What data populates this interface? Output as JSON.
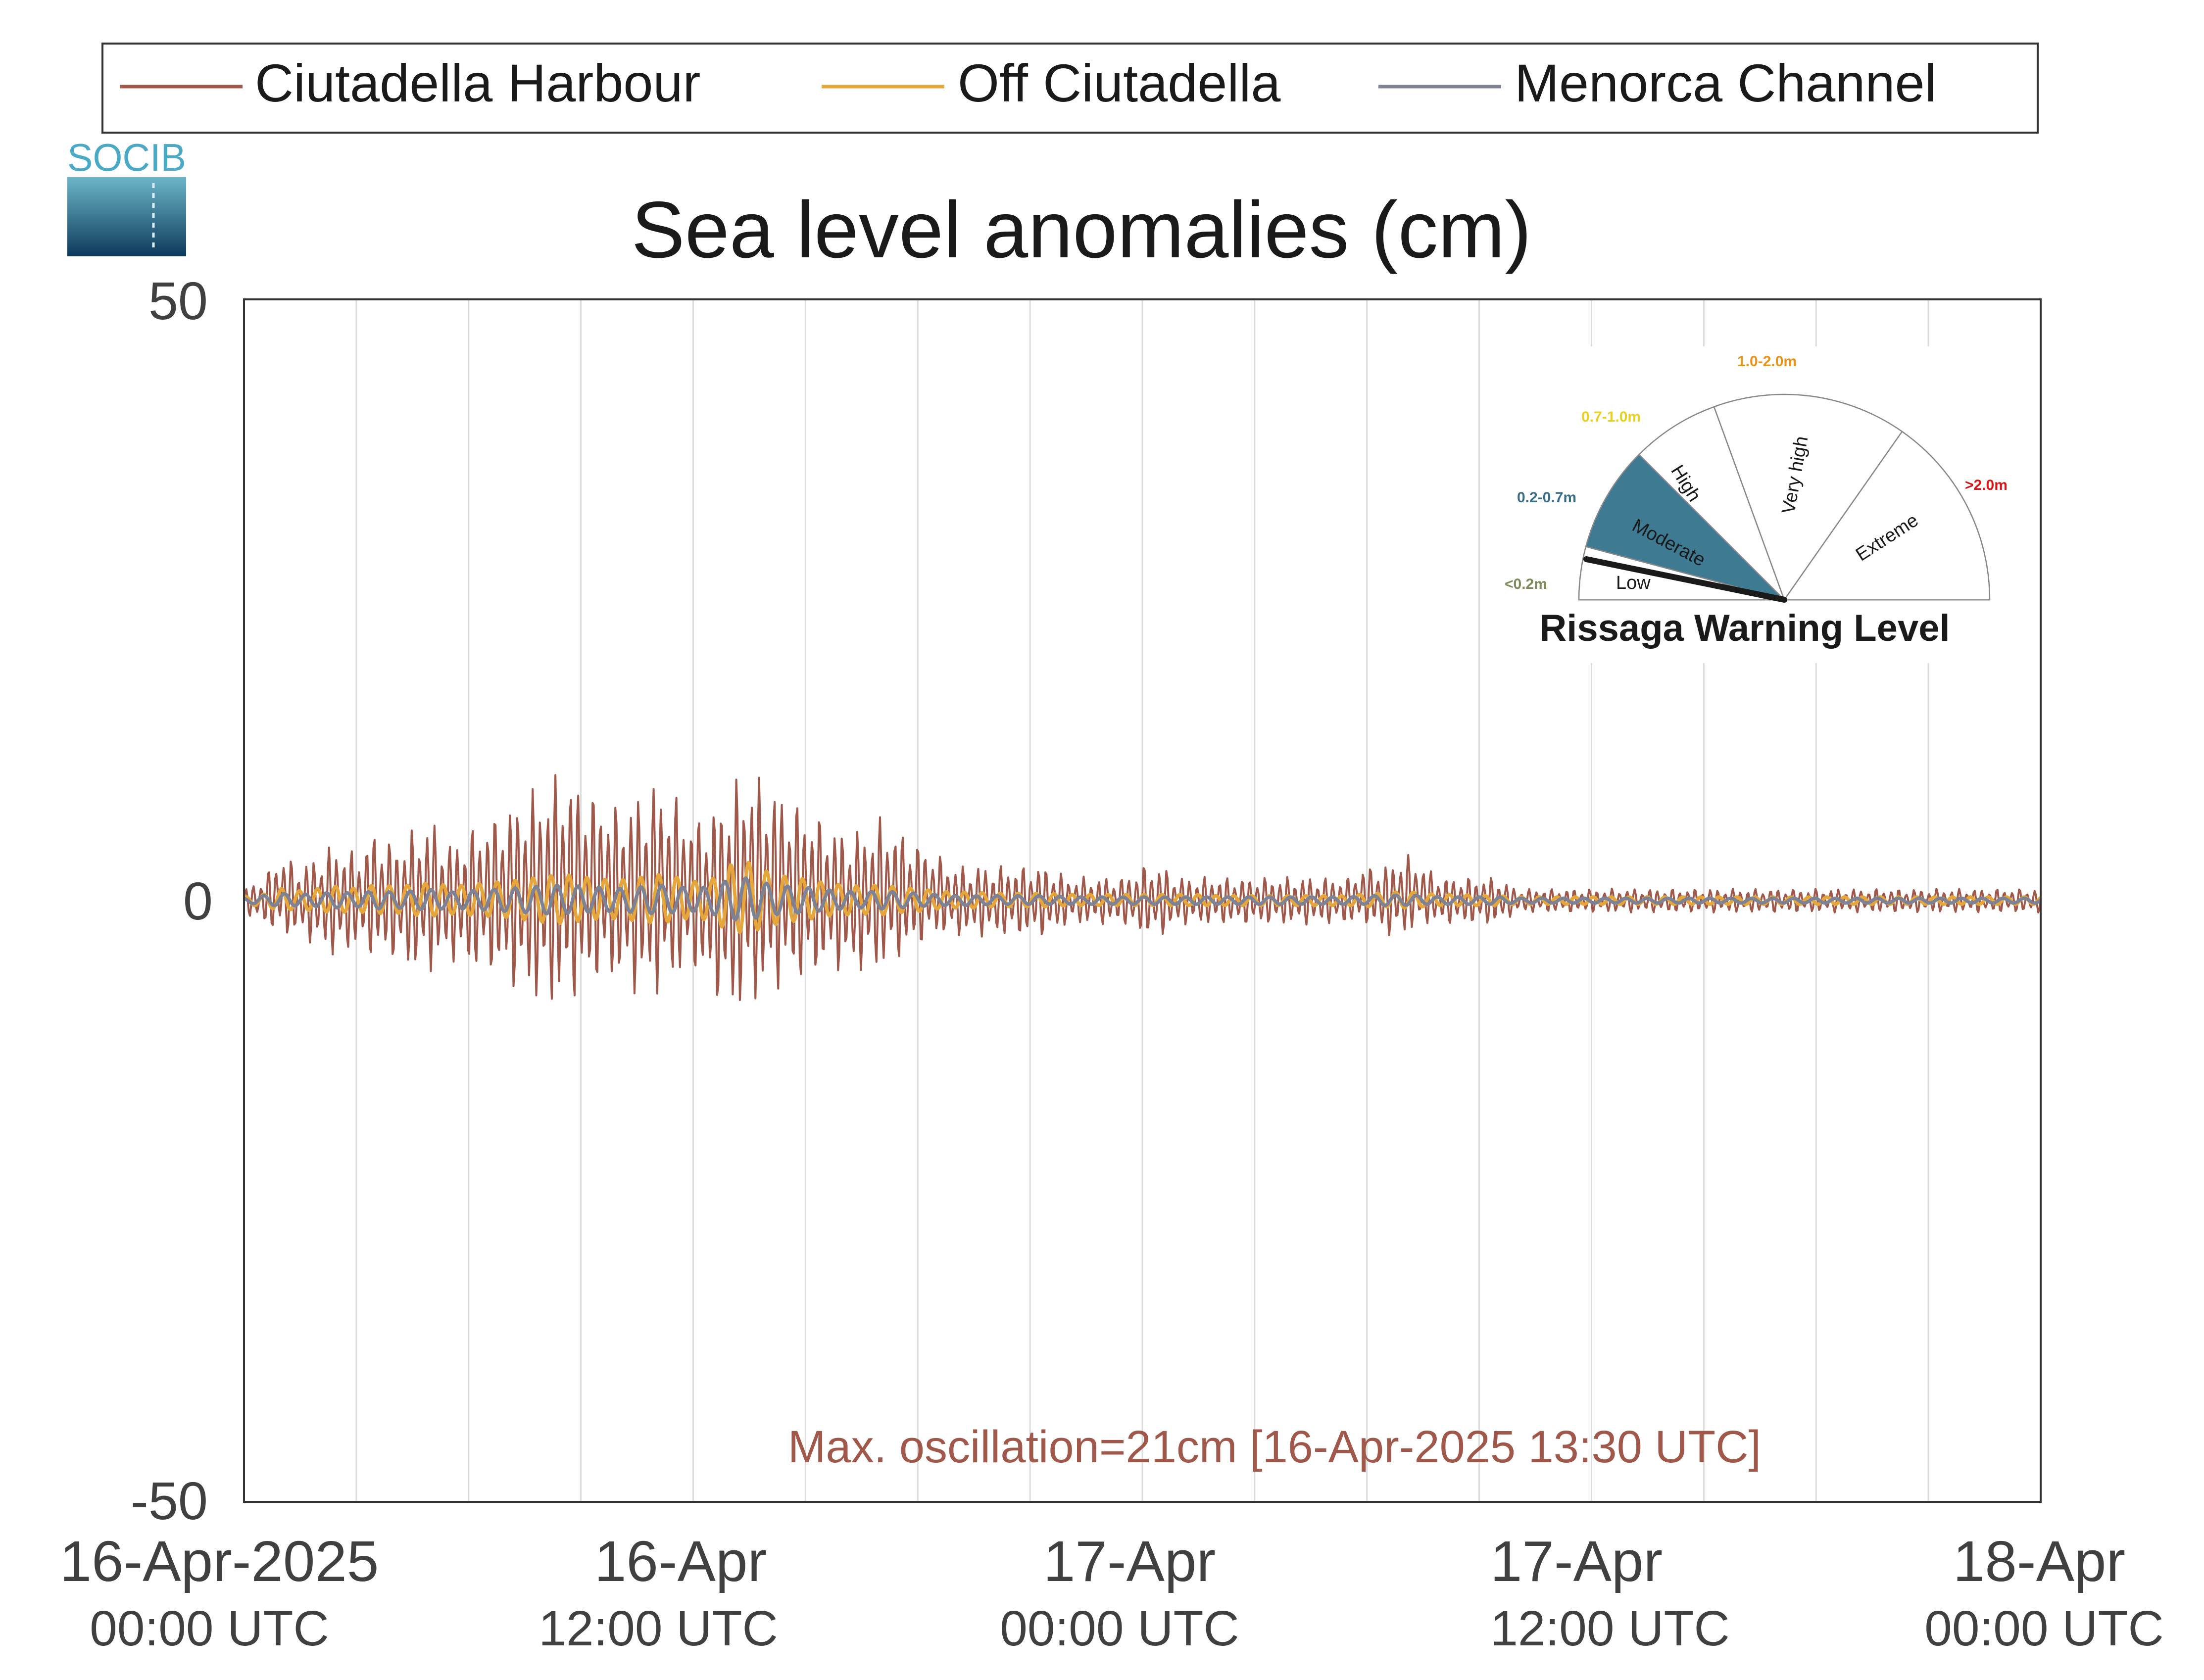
{
  "logo": {
    "text": "SOCIB"
  },
  "chart_data": {
    "type": "line",
    "title": "Sea level anomalies (cm)",
    "xlabel": "",
    "ylabel": "",
    "ylim": [
      -50,
      50
    ],
    "xlim_hours": [
      0,
      48
    ],
    "yticks": [
      "50",
      "0",
      "-50"
    ],
    "xticks": [
      {
        "hour": 0,
        "date": "16-Apr-2025",
        "time": "00:00 UTC"
      },
      {
        "hour": 12,
        "date": "16-Apr",
        "time": "12:00 UTC"
      },
      {
        "hour": 24,
        "date": "17-Apr",
        "time": "00:00 UTC"
      },
      {
        "hour": 36,
        "date": "17-Apr",
        "time": "12:00 UTC"
      },
      {
        "hour": 48,
        "date": "18-Apr",
        "time": "00:00 UTC"
      }
    ],
    "grid": "vertical-every-3h",
    "legend_position": "top",
    "series": [
      {
        "name": "Ciutadella Harbour",
        "color": "#a0584a",
        "x": [
          0,
          0.5,
          1,
          1.5,
          2,
          2.5,
          3,
          3.5,
          4,
          4.5,
          5,
          5.5,
          6,
          6.5,
          7,
          7.5,
          8,
          8.5,
          9,
          9.5,
          10,
          10.5,
          11,
          11.5,
          12,
          12.5,
          13,
          13.5,
          14,
          14.5,
          15,
          15.5,
          16,
          16.5,
          17,
          17.5,
          18,
          18.5,
          19,
          19.5,
          20,
          20.5,
          21,
          21.5,
          22,
          22.5,
          23,
          23.5,
          24,
          24.5,
          25,
          25.5,
          26,
          26.5,
          27,
          27.5,
          28,
          28.5,
          29,
          29.5,
          30,
          30.5,
          31,
          31.5,
          32,
          32.5,
          33,
          33.5,
          34,
          34.5,
          35,
          35.5,
          36,
          36.5,
          37,
          37.5,
          38,
          38.5,
          39,
          39.5,
          40,
          40.5,
          41,
          41.5,
          42,
          42.5,
          43,
          43.5,
          44,
          44.5,
          45,
          45.5,
          46,
          46.5,
          47,
          47.5,
          48
        ],
        "upper": [
          1,
          2,
          4,
          3,
          4,
          5,
          4,
          6,
          5,
          6,
          7,
          5,
          6,
          7,
          8,
          9,
          10,
          11,
          10,
          9,
          8,
          9,
          10,
          9,
          7,
          8,
          10,
          11,
          10,
          9,
          8,
          7,
          6,
          6,
          7,
          6,
          5,
          4,
          3,
          3,
          3,
          3,
          3,
          3,
          2,
          2,
          2,
          2,
          3,
          3,
          2,
          2,
          2,
          2,
          2,
          2,
          2,
          2,
          2,
          2,
          3,
          3,
          4,
          3,
          2,
          2,
          2,
          2,
          1,
          1,
          1,
          1,
          1,
          1,
          1,
          1,
          1,
          1,
          1,
          1,
          1,
          1,
          1,
          1,
          1,
          1,
          1,
          1,
          1,
          1,
          1,
          1,
          1,
          1,
          1,
          1,
          1
        ],
        "lower": [
          -1,
          -2,
          -3,
          -3,
          -4,
          -5,
          -4,
          -5,
          -5,
          -6,
          -6,
          -5,
          -6,
          -6,
          -7,
          -8,
          -9,
          -9,
          -8,
          -7,
          -7,
          -8,
          -8,
          -7,
          -6,
          -8,
          -10,
          -9,
          -8,
          -7,
          -7,
          -6,
          -6,
          -6,
          -6,
          -5,
          -4,
          -3,
          -3,
          -3,
          -3,
          -3,
          -3,
          -3,
          -2,
          -2,
          -2,
          -2,
          -3,
          -3,
          -2,
          -2,
          -2,
          -2,
          -2,
          -2,
          -2,
          -2,
          -2,
          -2,
          -2,
          -3,
          -3,
          -2,
          -2,
          -2,
          -2,
          -2,
          -1,
          -1,
          -1,
          -1,
          -1,
          -1,
          -1,
          -1,
          -1,
          -1,
          -1,
          -1,
          -1,
          -1,
          -1,
          -1,
          -1,
          -1,
          -1,
          -1,
          -1,
          -1,
          -1,
          -1,
          -1,
          -1,
          -1,
          -1,
          -1
        ]
      },
      {
        "name": "Off Ciutadella",
        "color": "#e5a63c",
        "x": [
          0,
          0.5,
          1,
          1.5,
          2,
          2.5,
          3,
          3.5,
          4,
          4.5,
          5,
          5.5,
          6,
          6.5,
          7,
          7.5,
          8,
          8.5,
          9,
          9.5,
          10,
          10.5,
          11,
          11.5,
          12,
          12.5,
          13,
          13.5,
          14,
          14.5,
          15,
          15.5,
          16,
          16.5,
          17,
          17.5,
          18,
          18.5,
          19,
          19.5,
          20,
          20.5,
          21,
          21.5,
          22,
          22.5,
          23,
          23.5,
          24,
          24.5,
          25,
          25.5,
          26,
          26.5,
          27,
          27.5,
          28,
          28.5,
          29,
          29.5,
          30,
          30.5,
          31,
          31.5,
          32,
          32.5,
          33,
          33.5,
          34,
          34.5,
          35,
          35.5,
          36,
          36.5,
          37,
          37.5,
          38,
          38.5,
          39,
          39.5,
          40,
          40.5,
          41,
          41.5,
          42,
          42.5,
          43,
          43.5,
          44,
          44.5,
          45,
          45.5,
          46,
          46.5,
          47,
          47.5,
          48
        ],
        "upper": [
          0.3,
          0.5,
          1,
          0.8,
          1,
          1.2,
          1,
          1.3,
          1.2,
          1.3,
          1.5,
          1.2,
          1.3,
          1.5,
          1.6,
          1.8,
          2,
          2.2,
          2,
          1.8,
          1.7,
          1.9,
          2.2,
          2,
          1.6,
          1.8,
          3,
          3.2,
          2.4,
          2,
          1.8,
          1.5,
          1.3,
          1.2,
          1.3,
          1.1,
          1,
          0.8,
          0.7,
          0.7,
          0.6,
          0.6,
          0.6,
          0.6,
          0.5,
          0.5,
          0.5,
          0.5,
          0.5,
          0.5,
          0.5,
          0.5,
          0.4,
          0.4,
          0.4,
          0.4,
          0.4,
          0.4,
          0.4,
          0.4,
          0.6,
          0.6,
          0.8,
          0.6,
          0.5,
          0.5,
          0.4,
          0.4,
          0.3,
          0.3,
          0.3,
          0.3,
          0.3,
          0.3,
          0.3,
          0.3,
          0.3,
          0.3,
          0.3,
          0.3,
          0.3,
          0.3,
          0.3,
          0.3,
          0.3,
          0.3,
          0.3,
          0.3,
          0.3,
          0.3,
          0.3,
          0.3,
          0.3,
          0.3,
          0.3,
          0.3,
          0.3
        ],
        "lower": [
          -0.3,
          -0.5,
          -0.8,
          -0.7,
          -0.9,
          -1,
          -0.9,
          -1.1,
          -1,
          -1.2,
          -1.3,
          -1.1,
          -1.2,
          -1.3,
          -1.4,
          -1.6,
          -1.8,
          -1.9,
          -1.7,
          -1.5,
          -1.5,
          -1.7,
          -1.9,
          -1.7,
          -1.4,
          -1.7,
          -2.6,
          -2.7,
          -2.1,
          -1.8,
          -1.6,
          -1.3,
          -1.2,
          -1.1,
          -1.2,
          -1,
          -0.9,
          -0.7,
          -0.6,
          -0.6,
          -0.5,
          -0.5,
          -0.5,
          -0.5,
          -0.4,
          -0.4,
          -0.4,
          -0.4,
          -0.4,
          -0.4,
          -0.4,
          -0.4,
          -0.4,
          -0.4,
          -0.4,
          -0.4,
          -0.4,
          -0.4,
          -0.4,
          -0.4,
          -0.5,
          -0.5,
          -0.6,
          -0.5,
          -0.4,
          -0.4,
          -0.4,
          -0.4,
          -0.3,
          -0.3,
          -0.3,
          -0.3,
          -0.3,
          -0.3,
          -0.3,
          -0.3,
          -0.3,
          -0.3,
          -0.3,
          -0.3,
          -0.3,
          -0.3,
          -0.3,
          -0.3,
          -0.3,
          -0.3,
          -0.3,
          -0.3,
          -0.3,
          -0.3,
          -0.3,
          -0.3,
          -0.3,
          -0.3,
          -0.3,
          -0.3,
          -0.3
        ]
      },
      {
        "name": "Menorca Channel",
        "color": "#7d8394",
        "x": [
          0,
          0.5,
          1,
          1.5,
          2,
          2.5,
          3,
          3.5,
          4,
          4.5,
          5,
          5.5,
          6,
          6.5,
          7,
          7.5,
          8,
          8.5,
          9,
          9.5,
          10,
          10.5,
          11,
          11.5,
          12,
          12.5,
          13,
          13.5,
          14,
          14.5,
          15,
          15.5,
          16,
          16.5,
          17,
          17.5,
          18,
          18.5,
          19,
          19.5,
          20,
          20.5,
          21,
          21.5,
          22,
          22.5,
          23,
          23.5,
          24,
          24.5,
          25,
          25.5,
          26,
          26.5,
          27,
          27.5,
          28,
          28.5,
          29,
          29.5,
          30,
          30.5,
          31,
          31.5,
          32,
          32.5,
          33,
          33.5,
          34,
          34.5,
          35,
          35.5,
          36,
          36.5,
          37,
          37.5,
          38,
          38.5,
          39,
          39.5,
          40,
          40.5,
          41,
          41.5,
          42,
          42.5,
          43,
          43.5,
          44,
          44.5,
          45,
          45.5,
          46,
          46.5,
          47,
          47.5,
          48
        ],
        "upper": [
          0.2,
          0.4,
          0.6,
          0.5,
          0.6,
          0.7,
          0.6,
          0.8,
          0.7,
          0.8,
          0.9,
          0.7,
          0.8,
          0.9,
          1,
          1.1,
          1.2,
          1.3,
          1.2,
          1.1,
          1,
          1.1,
          1.3,
          1.2,
          1,
          1.2,
          1.8,
          1.9,
          1.4,
          1.2,
          1.1,
          0.9,
          0.8,
          0.7,
          0.8,
          0.7,
          0.6,
          0.5,
          0.4,
          0.4,
          0.4,
          0.4,
          0.4,
          0.4,
          0.3,
          0.3,
          0.3,
          0.3,
          0.3,
          0.3,
          0.3,
          0.3,
          0.3,
          0.3,
          0.3,
          0.3,
          0.3,
          0.3,
          0.3,
          0.3,
          0.4,
          0.4,
          0.5,
          0.4,
          0.3,
          0.3,
          0.3,
          0.3,
          0.2,
          0.2,
          0.2,
          0.2,
          0.2,
          0.2,
          0.2,
          0.2,
          0.2,
          0.2,
          0.2,
          0.2,
          0.2,
          0.2,
          0.2,
          0.2,
          0.2,
          0.2,
          0.2,
          0.2,
          0.2,
          0.2,
          0.2,
          0.2,
          0.2,
          0.2,
          0.2,
          0.2,
          0.2
        ],
        "lower": [
          -0.2,
          -0.3,
          -0.5,
          -0.4,
          -0.5,
          -0.6,
          -0.5,
          -0.7,
          -0.6,
          -0.7,
          -0.8,
          -0.6,
          -0.7,
          -0.8,
          -0.9,
          -1,
          -1.1,
          -1.1,
          -1,
          -0.9,
          -0.9,
          -1,
          -1.1,
          -1,
          -0.9,
          -1.1,
          -1.6,
          -1.6,
          -1.2,
          -1.1,
          -1,
          -0.8,
          -0.7,
          -0.6,
          -0.7,
          -0.6,
          -0.5,
          -0.4,
          -0.4,
          -0.4,
          -0.3,
          -0.3,
          -0.3,
          -0.3,
          -0.3,
          -0.3,
          -0.3,
          -0.3,
          -0.3,
          -0.3,
          -0.3,
          -0.3,
          -0.3,
          -0.3,
          -0.3,
          -0.3,
          -0.3,
          -0.3,
          -0.3,
          -0.3,
          -0.3,
          -0.4,
          -0.4,
          -0.3,
          -0.3,
          -0.3,
          -0.3,
          -0.3,
          -0.2,
          -0.2,
          -0.2,
          -0.2,
          -0.2,
          -0.2,
          -0.2,
          -0.2,
          -0.2,
          -0.2,
          -0.2,
          -0.2,
          -0.2,
          -0.2,
          -0.2,
          -0.2,
          -0.2,
          -0.2,
          -0.2,
          -0.2,
          -0.2,
          -0.2,
          -0.2,
          -0.2,
          -0.2,
          -0.2,
          -0.2,
          -0.2,
          -0.2
        ]
      }
    ],
    "annotation": {
      "text": "Max. oscillation=21cm [16-Apr-2025 13:30 UTC]",
      "color": "#a0584a"
    }
  },
  "gauge": {
    "title": "Rissaga Warning Level",
    "current_level": "Moderate",
    "sectors": [
      {
        "label": "Low",
        "range": "<0.2m",
        "range_color": "#7d8a5a",
        "fill": "#ffffff"
      },
      {
        "label": "Moderate",
        "range": "0.2-0.7m",
        "range_color": "#3a6f8a",
        "fill": "#3e7a92"
      },
      {
        "label": "High",
        "range": "0.7-1.0m",
        "range_color": "#e8d020",
        "fill": "#ffffff"
      },
      {
        "label": "Very high",
        "range": "1.0-2.0m",
        "range_color": "#e8941c",
        "fill": "#ffffff"
      },
      {
        "label": "Extreme",
        "range": ">2.0m",
        "range_color": "#d81818",
        "fill": "#ffffff"
      }
    ]
  }
}
